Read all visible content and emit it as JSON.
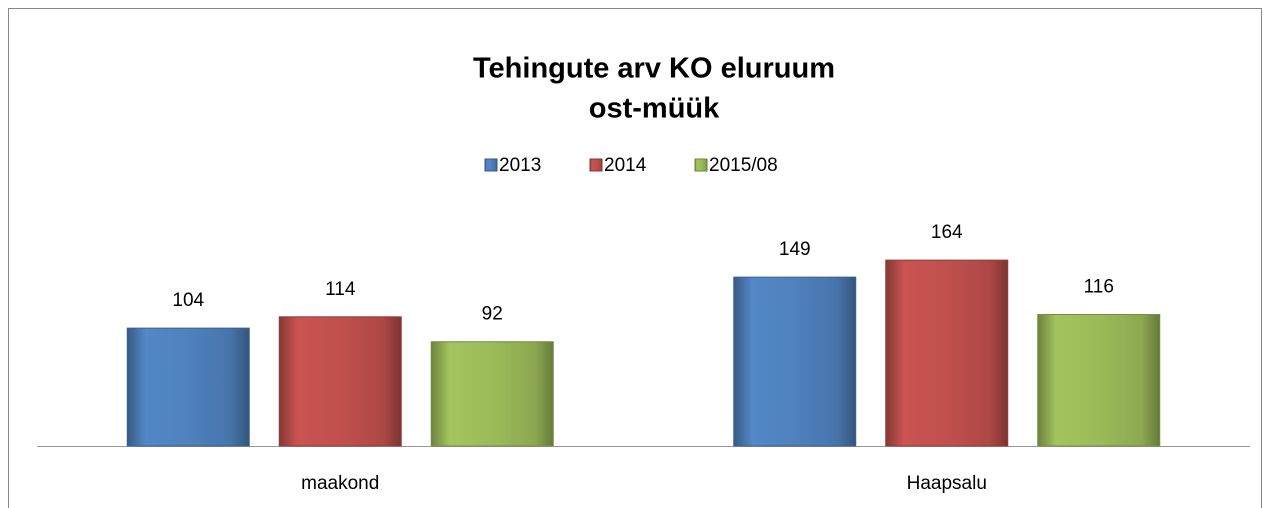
{
  "chart_data": {
    "type": "bar",
    "title": [
      "Tehingute arv KO eluruum",
      "ost-müük"
    ],
    "categories": [
      "maakond",
      "Haapsalu"
    ],
    "series": [
      {
        "name": "2013",
        "color": "#4f81bd",
        "values": [
          104,
          149
        ]
      },
      {
        "name": "2014",
        "color": "#c0504d",
        "values": [
          114,
          164
        ]
      },
      {
        "name": "2015/08",
        "color": "#9bbb59",
        "values": [
          92,
          116
        ]
      }
    ],
    "ylim": [
      0,
      180
    ],
    "legend": "top"
  }
}
